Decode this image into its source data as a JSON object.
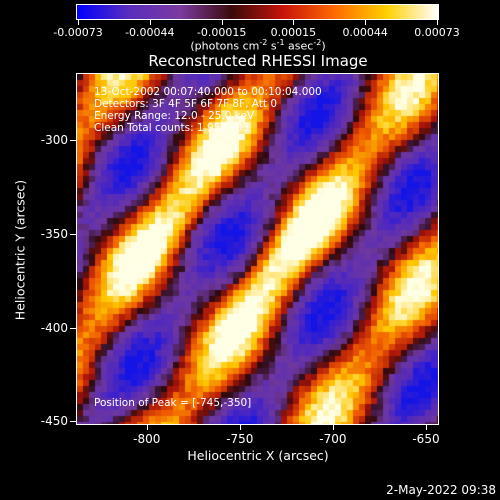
{
  "colorbar": {
    "tick_labels": [
      "-0.00073",
      "-0.00044",
      "-0.00015",
      "0.00015",
      "0.00044",
      "0.00073"
    ],
    "units_text": "(photons cm",
    "units_sup1": "-2",
    "units_mid": " s",
    "units_sup2": "-1",
    "units_mid2": " asec",
    "units_sup3": "-2",
    "units_end": ")",
    "gradient_colors": [
      "#0000ff",
      "#5a2dbd",
      "#7b3aa0",
      "#3a0a0a",
      "#c8140a",
      "#ff6a00",
      "#ffd000",
      "#ffffff"
    ]
  },
  "title": "Reconstructed RHESSI Image",
  "info": {
    "line1": "13-Oct-2002 00:07:40.000 to 00:10:04.000",
    "line2": "Detectors: 3F 4F 5F 6F 7F 8F, Att 0",
    "line3": "Energy Range: 12.0 - 25.0 keV",
    "line4": "Clean     Total counts: 1.95E+03",
    "peak": "Position of Peak = [-745,-350]"
  },
  "axes": {
    "xlabel": "Heliocentric X (arcsec)",
    "ylabel": "Heliocentric Y (arcsec)",
    "x_ticks": [
      "-800",
      "-750",
      "-700",
      "-650"
    ],
    "y_ticks": [
      "-300",
      "-350",
      "-400",
      "-450"
    ],
    "x_range": [
      -838,
      -643
    ],
    "y_range": [
      -452,
      -264
    ]
  },
  "footer": {
    "date_stamp": "2-May-2022 09:38"
  }
}
